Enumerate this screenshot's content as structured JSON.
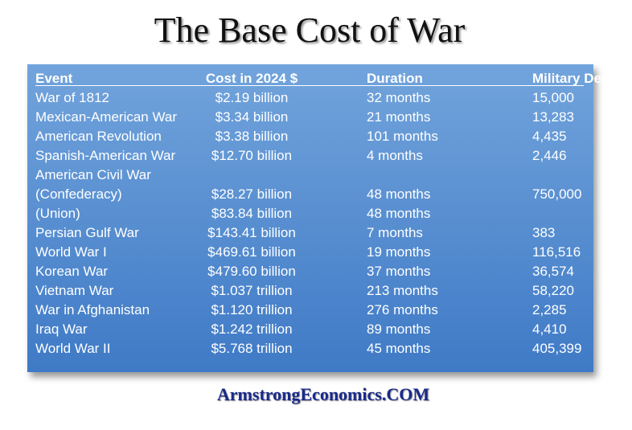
{
  "title": "The Base Cost of War",
  "table": {
    "header": {
      "event": "Event",
      "cost": "Cost in 2024 $",
      "duration": "Duration",
      "deaths": "Military Deaths"
    },
    "rows": [
      {
        "event": "War of 1812",
        "cost": "$2.19 billion",
        "duration": "32 months",
        "deaths": "15,000"
      },
      {
        "event": "Mexican-American War",
        "cost": "$3.34 billion",
        "duration": "21 months",
        "deaths": "13,283"
      },
      {
        "event": "American Revolution",
        "cost": "$3.38 billion",
        "duration": "101 months",
        "deaths": "4,435"
      },
      {
        "event": "Spanish-American War",
        "cost": "$12.70 billion",
        "duration": "4 months",
        "deaths": "2,446"
      },
      {
        "event": "American Civil War"
      },
      {
        "event": "(Confederacy)",
        "cost": "$28.27 billion",
        "duration": "48 months",
        "deaths": "750,000"
      },
      {
        "event": "(Union)",
        "cost": "$83.84 billion",
        "duration": "48 months"
      },
      {
        "event": "Persian Gulf War",
        "cost": "$143.41 billion",
        "duration": "7 months",
        "deaths": "383"
      },
      {
        "event": "World War I",
        "cost": "$469.61 billion",
        "duration": "19 months",
        "deaths": "116,516"
      },
      {
        "event": "Korean War",
        "cost": "$479.60 billion",
        "duration": "37 months",
        "deaths": "36,574"
      },
      {
        "event": "Vietnam War",
        "cost": "$1.037 trillion",
        "duration": "213 months",
        "deaths": "58,220"
      },
      {
        "event": "War in Afghanistan",
        "cost": "$1.120 trillion",
        "duration": "276 months",
        "deaths": "2,285"
      },
      {
        "event": "Iraq War",
        "cost": "$1.242 trillion",
        "duration": "89 months",
        "deaths": "4,410"
      },
      {
        "event": "World War II",
        "cost": "$5.768 trillion",
        "duration": "45 months",
        "deaths": "405,399"
      }
    ]
  },
  "footer": "ArmstrongEconomics.COM"
}
